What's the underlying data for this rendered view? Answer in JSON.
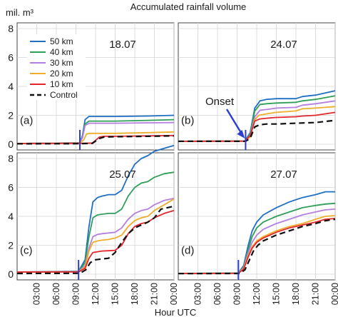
{
  "chart_data": {
    "type": "line",
    "title": "Accumulated rainfall volume",
    "ylabel": "mil. m³",
    "xlabel": "Hour UTC",
    "x_ticks": [
      "03:00",
      "06:00",
      "09:00",
      "12:00",
      "15:00",
      "18:00",
      "21:00",
      "00:00"
    ],
    "x_tick_hours": [
      3,
      6,
      9,
      12,
      15,
      18,
      21,
      24
    ],
    "xlim_hours": [
      0,
      24
    ],
    "legend": {
      "placement": "inside top-left of panel (a)",
      "entries": [
        {
          "label": "50 km",
          "color": "#1f6fc4",
          "dash": false
        },
        {
          "label": "40 km",
          "color": "#2e9e58",
          "dash": false
        },
        {
          "label": "30 km",
          "color": "#b57fe0",
          "dash": false
        },
        {
          "label": "20 km",
          "color": "#efad2a",
          "dash": false
        },
        {
          "label": "10 km",
          "color": "#e3262c",
          "dash": false
        },
        {
          "label": "Control",
          "color": "#111111",
          "dash": true
        }
      ]
    },
    "panels": [
      {
        "letter": "(a)",
        "date": "18.07",
        "ylim": [
          0,
          8
        ],
        "y_ticks": [
          0,
          2,
          4,
          6,
          8
        ],
        "onset_hour": 9.6,
        "series": [
          {
            "name": "50 km",
            "x": [
              0,
              9.6,
              10.0,
              10.4,
              11.0,
              15,
              20,
              24
            ],
            "y": [
              0.05,
              0.1,
              0.6,
              1.7,
              1.92,
              1.92,
              1.95,
              2.0
            ]
          },
          {
            "name": "40 km",
            "x": [
              0,
              9.6,
              10.0,
              10.4,
              11.0,
              15,
              20,
              24
            ],
            "y": [
              0.05,
              0.1,
              0.5,
              1.4,
              1.6,
              1.6,
              1.65,
              1.7
            ]
          },
          {
            "name": "30 km",
            "x": [
              0,
              9.6,
              10.0,
              10.4,
              11.0,
              15,
              20,
              24
            ],
            "y": [
              0.05,
              0.1,
              0.45,
              1.3,
              1.45,
              1.45,
              1.48,
              1.5
            ]
          },
          {
            "name": "20 km",
            "x": [
              0,
              9.6,
              10.2,
              10.6,
              11.2,
              15,
              20,
              24
            ],
            "y": [
              0.05,
              0.08,
              0.3,
              0.7,
              0.75,
              0.75,
              0.8,
              0.85
            ]
          },
          {
            "name": "10 km",
            "x": [
              0,
              9.6,
              11.5,
              12.6,
              13.3,
              15,
              20,
              24
            ],
            "y": [
              0.05,
              0.06,
              0.08,
              0.5,
              0.55,
              0.55,
              0.58,
              0.6
            ]
          },
          {
            "name": "Control",
            "x": [
              0,
              9.6,
              11.5,
              12.6,
              13.3,
              15,
              20,
              24
            ],
            "y": [
              0.03,
              0.04,
              0.06,
              0.4,
              0.5,
              0.52,
              0.55,
              0.58
            ]
          }
        ]
      },
      {
        "letter": "(b)",
        "date": "24.07",
        "ylim": [
          0,
          8
        ],
        "y_ticks": [],
        "onset_hour": 10.3,
        "onset_label": "Onset",
        "series": [
          {
            "name": "50 km",
            "x": [
              0,
              10.2,
              11.0,
              11.7,
              12.5,
              13.5,
              15,
              18,
              19,
              21,
              24
            ],
            "y": [
              0.2,
              0.22,
              0.8,
              2.5,
              3.0,
              3.1,
              3.15,
              3.15,
              3.3,
              3.4,
              3.7
            ]
          },
          {
            "name": "40 km",
            "x": [
              0,
              10.2,
              11.0,
              11.7,
              12.5,
              13.5,
              15,
              18,
              19,
              21,
              24
            ],
            "y": [
              0.2,
              0.22,
              0.7,
              2.3,
              2.75,
              2.8,
              2.85,
              2.9,
              3.0,
              3.1,
              3.35
            ]
          },
          {
            "name": "30 km",
            "x": [
              0,
              10.2,
              11.0,
              11.7,
              12.5,
              13.5,
              15,
              18,
              19,
              21,
              24
            ],
            "y": [
              0.2,
              0.21,
              0.6,
              1.9,
              2.35,
              2.4,
              2.5,
              2.55,
              2.7,
              2.8,
              3.0
            ]
          },
          {
            "name": "20 km",
            "x": [
              0,
              10.2,
              11.0,
              11.7,
              12.3,
              13.5,
              15,
              18,
              19,
              21,
              24
            ],
            "y": [
              0.2,
              0.21,
              0.5,
              1.7,
              2.0,
              2.1,
              2.2,
              2.3,
              2.45,
              2.5,
              2.6
            ]
          },
          {
            "name": "10 km",
            "x": [
              0,
              10.2,
              11.0,
              11.7,
              12.5,
              13.5,
              15,
              18,
              19,
              21,
              24
            ],
            "y": [
              0.2,
              0.21,
              0.6,
              1.6,
              1.75,
              1.8,
              1.85,
              1.9,
              1.95,
              2.0,
              2.2
            ]
          },
          {
            "name": "Control",
            "x": [
              0,
              10.3,
              11.0,
              11.7,
              12.5,
              13.5,
              15,
              18,
              21,
              24
            ],
            "y": [
              0.2,
              0.2,
              0.4,
              1.2,
              1.35,
              1.4,
              1.4,
              1.45,
              1.5,
              1.65
            ]
          }
        ]
      },
      {
        "letter": "(c)",
        "date": "25.07",
        "ylim": [
          0,
          8
        ],
        "y_ticks": [
          0,
          2,
          4,
          6,
          8
        ],
        "onset_hour": 9.4,
        "series": [
          {
            "name": "50 km",
            "x": [
              0,
              9.4,
              10.4,
              11.0,
              11.6,
              12.3,
              13.0,
              14.0,
              15.0,
              16.0,
              17.0,
              18.0,
              19.0,
              20.0,
              21.0,
              22.5,
              24
            ],
            "y": [
              0.15,
              0.2,
              1.0,
              3.3,
              5.0,
              5.3,
              5.4,
              5.5,
              5.5,
              5.8,
              6.8,
              7.6,
              8.0,
              8.2,
              8.5,
              8.7,
              8.9
            ]
          },
          {
            "name": "40 km",
            "x": [
              0,
              9.4,
              10.4,
              11.0,
              11.6,
              12.3,
              13.0,
              14.0,
              15.0,
              16.0,
              17.0,
              18.0,
              19.0,
              20.0,
              21.0,
              22.5,
              24
            ],
            "y": [
              0.15,
              0.18,
              0.8,
              2.6,
              3.9,
              4.1,
              4.15,
              4.2,
              4.2,
              4.5,
              5.4,
              6.0,
              6.3,
              6.4,
              6.7,
              6.95,
              7.05
            ]
          },
          {
            "name": "30 km",
            "x": [
              0,
              9.4,
              10.4,
              11.0,
              11.6,
              12.3,
              13.0,
              14.0,
              15.0,
              16.0,
              17.0,
              18.0,
              19.0,
              20.0,
              21.0,
              22.5,
              24
            ],
            "y": [
              0.15,
              0.18,
              0.6,
              1.8,
              2.6,
              2.75,
              2.8,
              2.85,
              2.9,
              3.2,
              3.8,
              4.2,
              4.4,
              4.5,
              4.8,
              5.1,
              5.25
            ]
          },
          {
            "name": "20 km",
            "x": [
              0,
              9.4,
              10.4,
              11.0,
              11.6,
              12.3,
              13.0,
              14.0,
              15.0,
              16.0,
              17.0,
              18.0,
              19.0,
              20.0,
              21.0,
              22.5,
              24
            ],
            "y": [
              0.15,
              0.17,
              0.5,
              1.6,
              2.2,
              2.3,
              2.35,
              2.4,
              2.5,
              2.7,
              3.3,
              3.7,
              3.9,
              4.0,
              4.4,
              4.8,
              5.2
            ]
          },
          {
            "name": "10 km",
            "x": [
              0,
              9.4,
              10.4,
              11.0,
              11.6,
              12.3,
              13.0,
              14.0,
              15.0,
              16.0,
              17.0,
              18.0,
              19.0,
              20.0,
              21.0,
              22.5,
              24
            ],
            "y": [
              0.15,
              0.16,
              0.4,
              1.1,
              1.5,
              1.55,
              1.6,
              1.62,
              1.65,
              2.0,
              2.8,
              3.3,
              3.5,
              3.6,
              3.9,
              4.2,
              4.4
            ]
          },
          {
            "name": "Control",
            "x": [
              0,
              9.6,
              10.5,
              11.2,
              12.0,
              13.0,
              14.0,
              15.0,
              16.0,
              17.0,
              18.0,
              19.0,
              20.0,
              21.0,
              22.0,
              23.0,
              24
            ],
            "y": [
              0.05,
              0.06,
              0.3,
              0.8,
              1.0,
              1.05,
              1.1,
              1.5,
              2.2,
              2.8,
              3.2,
              3.4,
              3.6,
              3.9,
              4.5,
              4.6,
              4.7
            ]
          }
        ]
      },
      {
        "letter": "(d)",
        "date": "27.07",
        "ylim": [
          0,
          8
        ],
        "y_ticks": [],
        "onset_hour": 9.2,
        "series": [
          {
            "name": "50 km",
            "x": [
              0,
              9.2,
              10.0,
              10.7,
              11.3,
              12.0,
              13.0,
              15.0,
              17.0,
              19.0,
              21.0,
              22.5,
              24
            ],
            "y": [
              0.05,
              0.08,
              0.6,
              2.0,
              3.0,
              3.6,
              4.1,
              4.6,
              5.0,
              5.3,
              5.5,
              5.7,
              5.7
            ]
          },
          {
            "name": "40 km",
            "x": [
              0,
              9.2,
              10.0,
              10.7,
              11.3,
              12.0,
              13.0,
              15.0,
              17.0,
              19.0,
              21.0,
              22.5,
              24
            ],
            "y": [
              0.05,
              0.08,
              0.5,
              1.7,
              2.6,
              3.2,
              3.6,
              4.0,
              4.3,
              4.6,
              4.75,
              4.85,
              4.9
            ]
          },
          {
            "name": "30 km",
            "x": [
              0,
              9.2,
              10.0,
              10.7,
              11.3,
              12.0,
              13.0,
              15.0,
              17.0,
              19.0,
              21.0,
              22.5,
              24
            ],
            "y": [
              0.05,
              0.07,
              0.45,
              1.5,
              2.2,
              2.7,
              3.1,
              3.5,
              3.8,
              4.1,
              4.3,
              4.45,
              4.5
            ]
          },
          {
            "name": "20 km",
            "x": [
              0,
              9.2,
              10.0,
              10.7,
              11.3,
              12.0,
              13.0,
              15.0,
              17.0,
              19.0,
              21.0,
              22.5,
              24
            ],
            "y": [
              0.05,
              0.07,
              0.4,
              1.3,
              1.9,
              2.3,
              2.6,
              3.0,
              3.3,
              3.5,
              3.8,
              4.0,
              4.05
            ]
          },
          {
            "name": "10 km",
            "x": [
              0,
              9.2,
              10.0,
              10.7,
              11.3,
              12.0,
              13.0,
              15.0,
              17.0,
              19.0,
              21.0,
              22.5,
              24
            ],
            "y": [
              0.05,
              0.06,
              0.35,
              1.2,
              1.8,
              2.2,
              2.5,
              2.9,
              3.2,
              3.4,
              3.6,
              3.8,
              3.85
            ]
          },
          {
            "name": "Control",
            "x": [
              0,
              9.4,
              10.2,
              10.9,
              11.5,
              12.2,
              13.0,
              15.0,
              17.0,
              19.0,
              21.0,
              22.5,
              24
            ],
            "y": [
              0.04,
              0.05,
              0.3,
              1.0,
              1.6,
              2.0,
              2.3,
              2.7,
              3.0,
              3.3,
              3.5,
              3.7,
              3.8
            ]
          }
        ]
      }
    ]
  }
}
